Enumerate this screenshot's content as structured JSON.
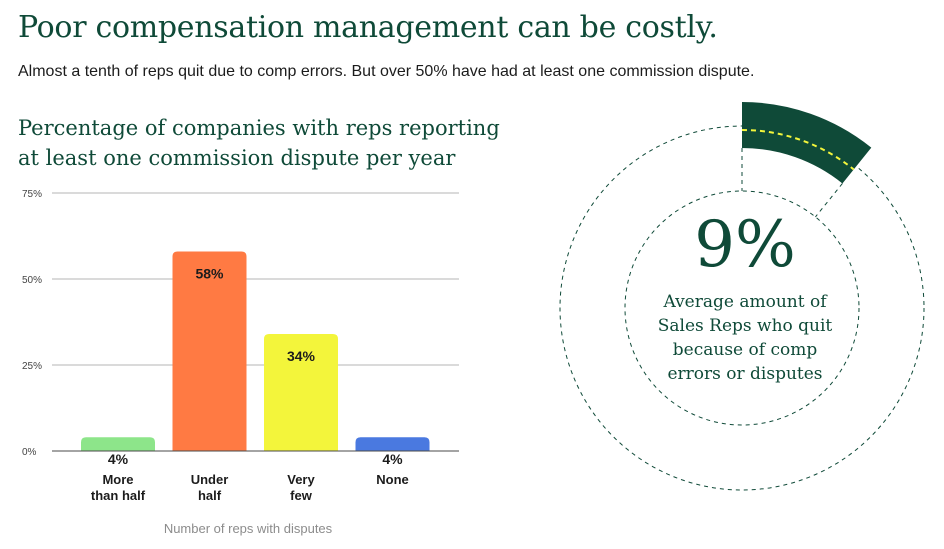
{
  "header": {
    "title": "Poor compensation management can be costly.",
    "subtitle": "Almost a tenth of reps quit due to comp errors. But over 50% have had at least one commission dispute."
  },
  "chart_data": {
    "type": "bar",
    "title_lines": [
      "Percentage of companies with reps reporting",
      "at least one commission dispute per year"
    ],
    "categories": [
      [
        "More",
        "than half"
      ],
      [
        "Under",
        "half"
      ],
      [
        "Very",
        "few"
      ],
      [
        "None"
      ]
    ],
    "values": [
      4,
      58,
      34,
      4
    ],
    "value_labels": [
      "4%",
      "58%",
      "34%",
      "4%"
    ],
    "colors": [
      "#8de58a",
      "#ff7a43",
      "#f3f53b",
      "#4a79e0"
    ],
    "xlabel": "Number of reps with disputes",
    "ylabel": "",
    "ylim": [
      0,
      75
    ],
    "yticks": [
      0,
      25,
      50,
      75
    ],
    "ytick_labels": [
      "0%",
      "25%",
      "50%",
      "75%"
    ],
    "grid": true
  },
  "stat": {
    "value": "9%",
    "value_fraction": 0.09,
    "caption_lines": [
      "Average amount of",
      "Sales Reps who quit",
      "because of comp",
      "errors or disputes"
    ],
    "accent": "#0f4a38",
    "highlight": "#f3f53b"
  }
}
